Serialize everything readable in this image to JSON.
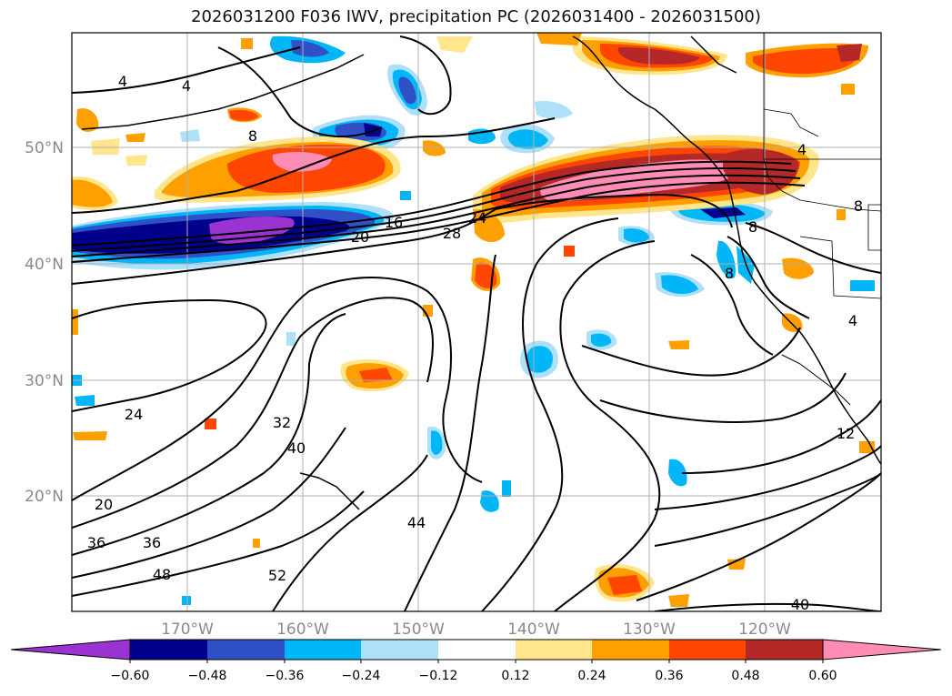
{
  "title": "2026031200 F036 IWV, precipitation PC (2026031400 - 2026031500)",
  "lat_labels": [
    "50°N",
    "40°N",
    "30°N",
    "20°N"
  ],
  "lon_labels": [
    "170°W",
    "160°W",
    "150°W",
    "140°W",
    "130°W",
    "120°W"
  ],
  "contour_labels": [
    "4",
    "4",
    "8",
    "16",
    "20",
    "24",
    "28",
    "8",
    "8",
    "24",
    "32",
    "40",
    "20",
    "36",
    "36",
    "48",
    "52",
    "44",
    "40",
    "12",
    "4",
    "8",
    "4"
  ],
  "colorbar": {
    "ticks": [
      "−0.60",
      "−0.48",
      "−0.36",
      "−0.24",
      "−0.12",
      "0.12",
      "0.24",
      "0.36",
      "0.48",
      "0.60"
    ],
    "colors": [
      "#9b32d2",
      "#00008c",
      "#3050c8",
      "#00b6f6",
      "#aee0fa",
      "#ffffff",
      "#ffe68c",
      "#ffa000",
      "#ff4600",
      "#b42828",
      "#ff8cb4"
    ]
  },
  "palette": {
    "purple": "#9b32d2",
    "navy": "#00008c",
    "blue": "#3050c8",
    "cyan": "#00b6f6",
    "lightblue": "#aee0fa",
    "yellow": "#ffe68c",
    "orange": "#ffa000",
    "redorange": "#ff4600",
    "darkred": "#b42828",
    "pink": "#ff8cb4"
  }
}
